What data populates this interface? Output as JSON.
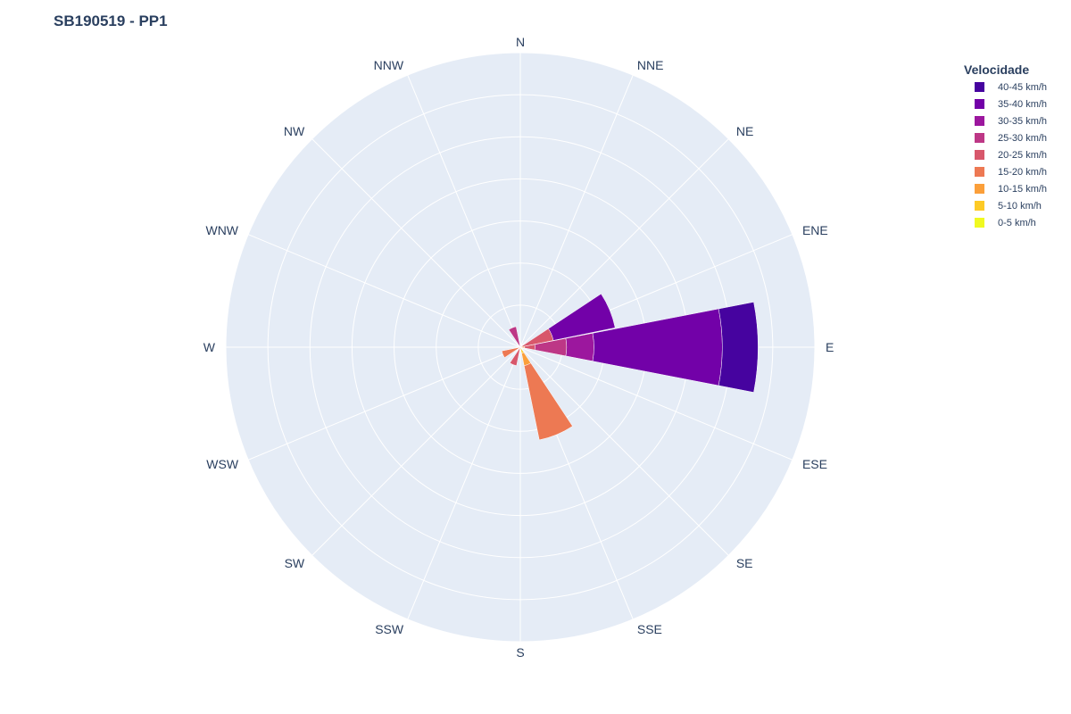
{
  "title": "SB190519 - PP1",
  "legend_title": "Velocidade",
  "chart_data": {
    "type": "barpolar",
    "title": "SB190519 - PP1",
    "legend_title": "Velocidade",
    "directions": [
      "N",
      "NNE",
      "NE",
      "ENE",
      "E",
      "ESE",
      "SE",
      "SSE",
      "S",
      "SSW",
      "SW",
      "WSW",
      "W",
      "WNW",
      "NW",
      "NNW"
    ],
    "radial_range": [
      0,
      14
    ],
    "gridlines": [
      2,
      4,
      6,
      8,
      10,
      12,
      14
    ],
    "series": [
      {
        "name": "0-5 km/h",
        "color": "#f0f921",
        "values": [
          0,
          0,
          0,
          0,
          0,
          0,
          0,
          0,
          0,
          0,
          0,
          0,
          0,
          0,
          0,
          0
        ]
      },
      {
        "name": "5-10 km/h",
        "color": "#fdca26",
        "values": [
          0,
          0,
          0,
          0,
          0,
          0,
          0,
          0.3,
          0,
          0,
          0,
          0,
          0,
          0,
          0,
          0
        ]
      },
      {
        "name": "10-15 km/h",
        "color": "#fb9f3a",
        "values": [
          0,
          0,
          0,
          0,
          0.2,
          0,
          0,
          0.6,
          0,
          0,
          0,
          0,
          0,
          0,
          0,
          0
        ]
      },
      {
        "name": "15-20 km/h",
        "color": "#ed7953",
        "values": [
          0,
          0,
          0,
          0,
          0,
          0,
          0,
          3.6,
          0,
          0,
          0,
          0.9,
          0,
          0,
          0,
          0
        ]
      },
      {
        "name": "20-25 km/h",
        "color": "#d8576b",
        "values": [
          0,
          0,
          0,
          1.6,
          0.5,
          0,
          0,
          0,
          0,
          0.9,
          0,
          0,
          0,
          0,
          0,
          0
        ]
      },
      {
        "name": "25-30 km/h",
        "color": "#bd3786",
        "values": [
          0,
          0,
          0,
          0,
          1.5,
          0,
          0,
          0,
          0,
          0,
          0,
          0,
          0,
          0,
          0,
          1.0
        ]
      },
      {
        "name": "30-35 km/h",
        "color": "#9c179e",
        "values": [
          0,
          0,
          0,
          0,
          1.3,
          0,
          0,
          0,
          0,
          0,
          0,
          0,
          0,
          0,
          0,
          0
        ]
      },
      {
        "name": "35-40 km/h",
        "color": "#7201a8",
        "values": [
          0,
          0,
          0,
          3.0,
          6.1,
          0,
          0,
          0,
          0,
          0,
          0,
          0,
          0,
          0,
          0,
          0
        ]
      },
      {
        "name": "40-45 km/h",
        "color": "#46039f",
        "values": [
          0,
          0,
          0,
          0,
          1.7,
          0,
          0,
          0,
          0,
          0,
          0,
          0,
          0,
          0,
          0,
          0
        ]
      }
    ]
  }
}
